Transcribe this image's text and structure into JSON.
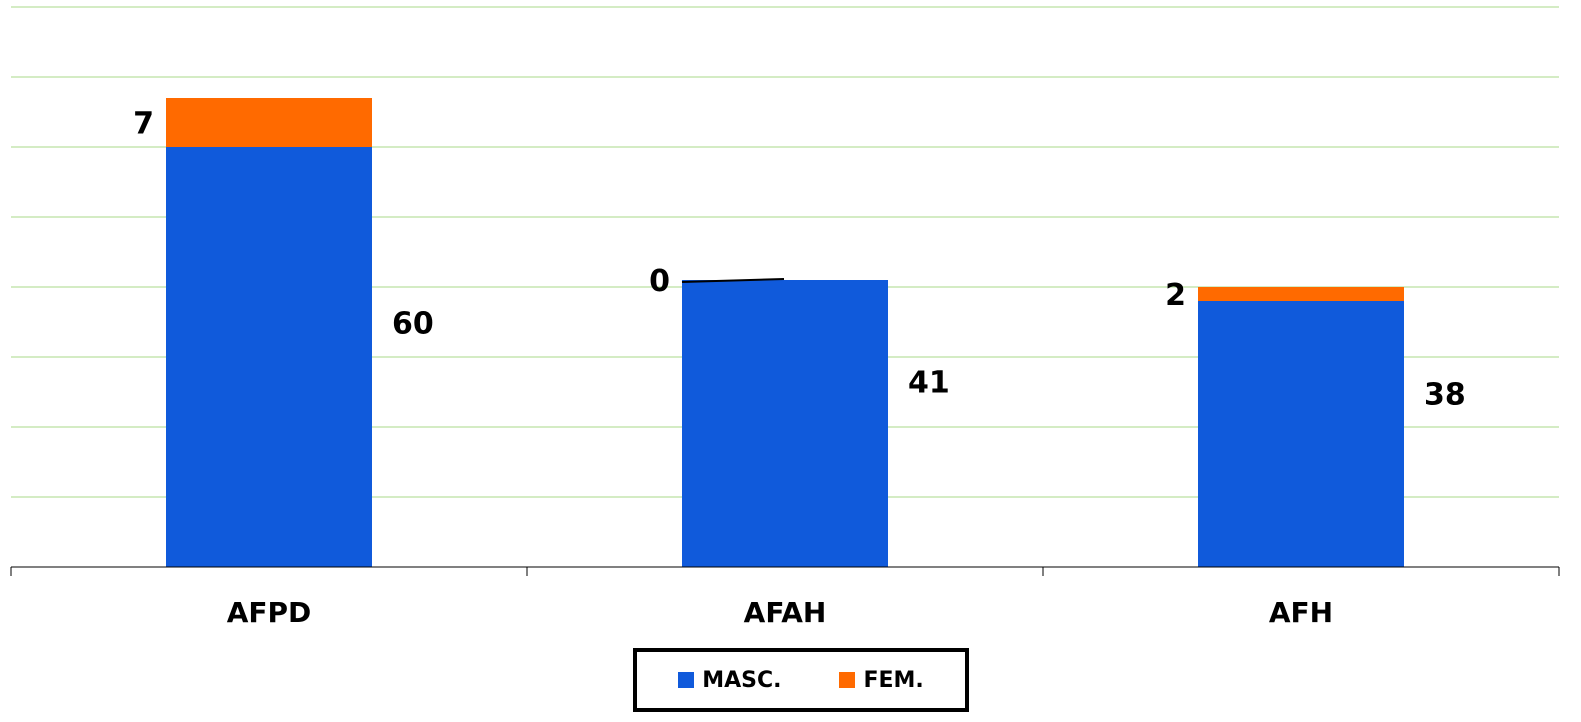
{
  "chart_data": {
    "type": "bar",
    "stacked": true,
    "categories": [
      "AFPD",
      "AFAH",
      "AFH"
    ],
    "series": [
      {
        "name": "MASC.",
        "values": [
          60,
          41,
          38
        ],
        "color": "#105adb"
      },
      {
        "name": "FEM.",
        "values": [
          7,
          0,
          2
        ],
        "color": "#ff6a00"
      }
    ],
    "ylim": [
      0,
      80
    ],
    "grid": true,
    "grid_color": "#a8d98a",
    "legend_position": "bottom"
  }
}
